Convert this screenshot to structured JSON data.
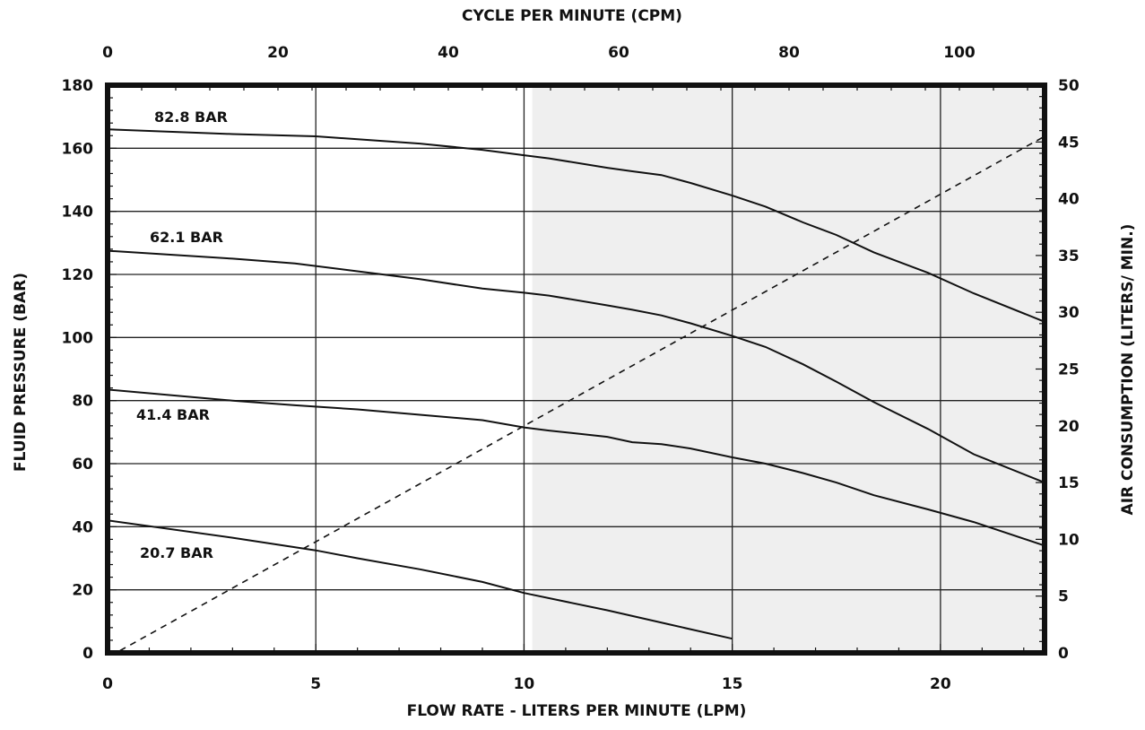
{
  "chart_data": {
    "type": "line",
    "title": "",
    "xlabel": "FLOW RATE - LITERS PER MINUTE (LPM)",
    "ylabel": "FLUID PRESSURE (BAR)",
    "x2label": "CYCLE PER MINUTE (CPM)",
    "y2label": "AIR CONSUMPTION (LITERS/ MIN.)",
    "xlim": [
      0,
      22.5
    ],
    "ylim": [
      0,
      180
    ],
    "x2lim": [
      0,
      110
    ],
    "y2lim": [
      0,
      50
    ],
    "x_ticks": [
      0,
      5,
      10,
      15,
      20
    ],
    "y_ticks": [
      0,
      20,
      40,
      60,
      80,
      100,
      120,
      140,
      160,
      180
    ],
    "x2_ticks": [
      0,
      20,
      40,
      60,
      80,
      100
    ],
    "y2_ticks": [
      0,
      5,
      10,
      15,
      20,
      25,
      30,
      35,
      40,
      45,
      50
    ],
    "grid": true,
    "shaded_region_x": [
      10.2,
      22.5
    ],
    "colors": {
      "line": "#111111",
      "grid": "#222222",
      "shade": "#efefef",
      "frame": "#111111"
    },
    "series": [
      {
        "name": "82.8 BAR",
        "style": "solid",
        "points": [
          [
            0,
            166
          ],
          [
            3,
            164.5
          ],
          [
            5,
            163.8
          ],
          [
            7.5,
            161.5
          ],
          [
            9,
            159.5
          ],
          [
            10,
            157.8
          ],
          [
            10.6,
            156.8
          ],
          [
            12,
            153.8
          ],
          [
            12.6,
            152.7
          ],
          [
            13.3,
            151.5
          ],
          [
            14,
            149
          ],
          [
            15,
            145
          ],
          [
            15.8,
            141.5
          ],
          [
            16.7,
            136.5
          ],
          [
            17.5,
            132.5
          ],
          [
            18.4,
            127
          ],
          [
            19.7,
            120.5
          ],
          [
            20.8,
            114
          ],
          [
            22.5,
            105
          ]
        ]
      },
      {
        "name": "62.1 BAR",
        "style": "solid",
        "points": [
          [
            0,
            127.5
          ],
          [
            3,
            125
          ],
          [
            4.5,
            123.5
          ],
          [
            6,
            121
          ],
          [
            7.5,
            118.5
          ],
          [
            9,
            115.5
          ],
          [
            10,
            114.2
          ],
          [
            10.6,
            113.3
          ],
          [
            12,
            110.2
          ],
          [
            12.6,
            108.8
          ],
          [
            13.3,
            107
          ],
          [
            14,
            104.5
          ],
          [
            15,
            100.5
          ],
          [
            15.8,
            97
          ],
          [
            16.7,
            91.5
          ],
          [
            17.5,
            86
          ],
          [
            18.4,
            79.5
          ],
          [
            19.7,
            71
          ],
          [
            20.8,
            63
          ],
          [
            22.5,
            54
          ]
        ]
      },
      {
        "name": "41.4 BAR",
        "style": "solid",
        "points": [
          [
            0,
            83.5
          ],
          [
            3,
            80
          ],
          [
            4.5,
            78.5
          ],
          [
            6,
            77.2
          ],
          [
            7.5,
            75.5
          ],
          [
            9,
            73.8
          ],
          [
            10,
            71.5
          ],
          [
            10.6,
            70.5
          ],
          [
            12,
            68.5
          ],
          [
            12.6,
            66.8
          ],
          [
            13.3,
            66.2
          ],
          [
            14,
            64.8
          ],
          [
            15,
            62
          ],
          [
            15.8,
            60
          ],
          [
            16.7,
            57
          ],
          [
            17.5,
            54
          ],
          [
            18.4,
            50
          ],
          [
            19.7,
            45.5
          ],
          [
            20.8,
            41.5
          ],
          [
            22.5,
            34
          ]
        ]
      },
      {
        "name": "20.7 BAR",
        "style": "solid",
        "points": [
          [
            0,
            42
          ],
          [
            3,
            36.5
          ],
          [
            5,
            32.5
          ],
          [
            6,
            30
          ],
          [
            7.5,
            26.5
          ],
          [
            9,
            22.5
          ],
          [
            10,
            19
          ],
          [
            12,
            13.5
          ],
          [
            13.5,
            9
          ],
          [
            15,
            4.5
          ]
        ]
      },
      {
        "name": "",
        "style": "dashed",
        "axis": "right",
        "points": [
          [
            0.3,
            0.2
          ],
          [
            22.5,
            45.5
          ]
        ]
      }
    ]
  }
}
